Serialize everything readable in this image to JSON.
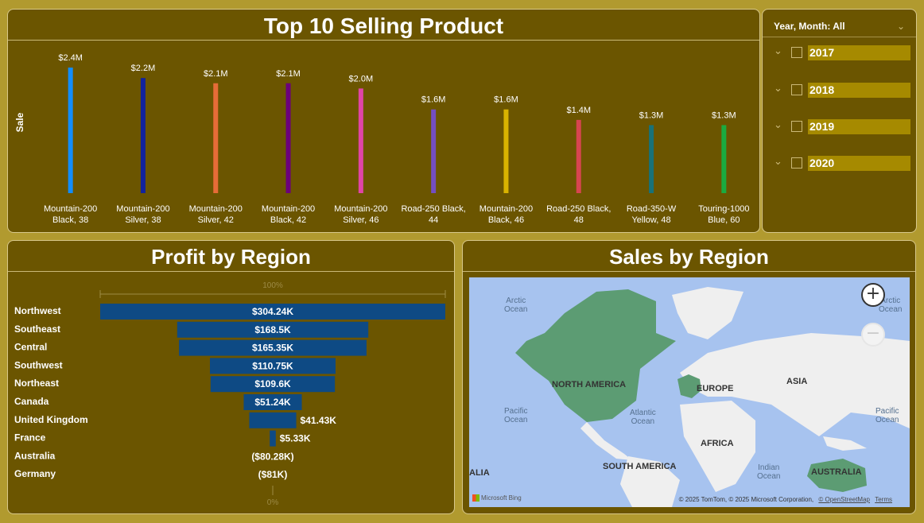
{
  "top_chart": {
    "title": "Top 10 Selling Product",
    "chart_data": {
      "type": "bar",
      "title": "Top 10 Selling Product",
      "ylabel": "Sale",
      "xlabel": "",
      "ylim": [
        0,
        2400000
      ],
      "categories": [
        [
          "Mountain-200",
          "Black, 38"
        ],
        [
          "Mountain-200",
          "Silver, 38"
        ],
        [
          "Mountain-200",
          "Silver, 42"
        ],
        [
          "Mountain-200",
          "Black, 42"
        ],
        [
          "Mountain-200",
          "Silver, 46"
        ],
        [
          "Road-250 Black,",
          "44"
        ],
        [
          "Mountain-200",
          "Black, 46"
        ],
        [
          "Road-250 Black,",
          "48"
        ],
        [
          "Road-350-W",
          "Yellow, 48"
        ],
        [
          "Touring-1000",
          "Blue, 60"
        ]
      ],
      "values": [
        2400000,
        2200000,
        2100000,
        2100000,
        2000000,
        1600000,
        1600000,
        1400000,
        1300000,
        1300000
      ],
      "data_labels": [
        "$2.4M",
        "$2.2M",
        "$2.1M",
        "$2.1M",
        "$2.0M",
        "$1.6M",
        "$1.6M",
        "$1.4M",
        "$1.3M",
        "$1.3M"
      ],
      "colors": [
        "#118dff",
        "#12239e",
        "#e66c37",
        "#6b007b",
        "#e044a7",
        "#744ec2",
        "#d9b300",
        "#d64550",
        "#197278",
        "#1aab40"
      ],
      "grid": false
    }
  },
  "slicer": {
    "header": "Year, Month: All",
    "items": [
      "2017",
      "2018",
      "2019",
      "2020"
    ],
    "colors": {
      "label_bg": "#a68a00"
    }
  },
  "profit_chart": {
    "title": "Profit by Region",
    "top_label": "100%",
    "bottom_label": "0%",
    "chart_data": {
      "type": "bar",
      "subtype": "funnel",
      "title": "Profit by Region",
      "categories": [
        "Northwest",
        "Southeast",
        "Central",
        "Southwest",
        "Northeast",
        "Canada",
        "United Kingdom",
        "France",
        "Australia",
        "Germany"
      ],
      "values": [
        304240,
        168500,
        165350,
        110750,
        109600,
        51240,
        41430,
        5330,
        -80280,
        -81000
      ],
      "data_labels": [
        "$304.24K",
        "$168.5K",
        "$165.35K",
        "$110.75K",
        "$109.6K",
        "$51.24K",
        "$41.43K",
        "$5.33K",
        "($80.28K)",
        "($81K)"
      ],
      "color": "#0e4a84"
    }
  },
  "map": {
    "title": "Sales by Region",
    "oceans": [
      {
        "name": "Arctic Ocean",
        "lines": [
          "Arctic",
          "Ocean"
        ]
      },
      {
        "name": "Arctic Ocean right",
        "lines": [
          "Arctic",
          "Ocean"
        ]
      },
      {
        "name": "Pacific Ocean",
        "lines": [
          "Pacific",
          "Ocean"
        ]
      },
      {
        "name": "Atlantic Ocean",
        "lines": [
          "Atlantic",
          "Ocean"
        ]
      },
      {
        "name": "Pacific Ocean right",
        "lines": [
          "Pacific",
          "Ocean"
        ]
      },
      {
        "name": "Indian Ocean",
        "lines": [
          "Indian",
          "Ocean"
        ]
      }
    ],
    "continents": [
      "NORTH AMERICA",
      "EUROPE",
      "ASIA",
      "AFRICA",
      "SOUTH AMERICA",
      "ALIA",
      "AUSTRALIA"
    ],
    "zoom_in": "+",
    "zoom_out": "−",
    "logo_text": "Microsoft Bing",
    "attribution": "© 2025 TomTom, © 2025 Microsoft Corporation,",
    "osm_link": "© OpenStreetMap",
    "terms_link": "Terms",
    "colors": {
      "ocean": "#a7c3ef",
      "land": "#efefef",
      "highlight": "#5c9c73"
    }
  }
}
